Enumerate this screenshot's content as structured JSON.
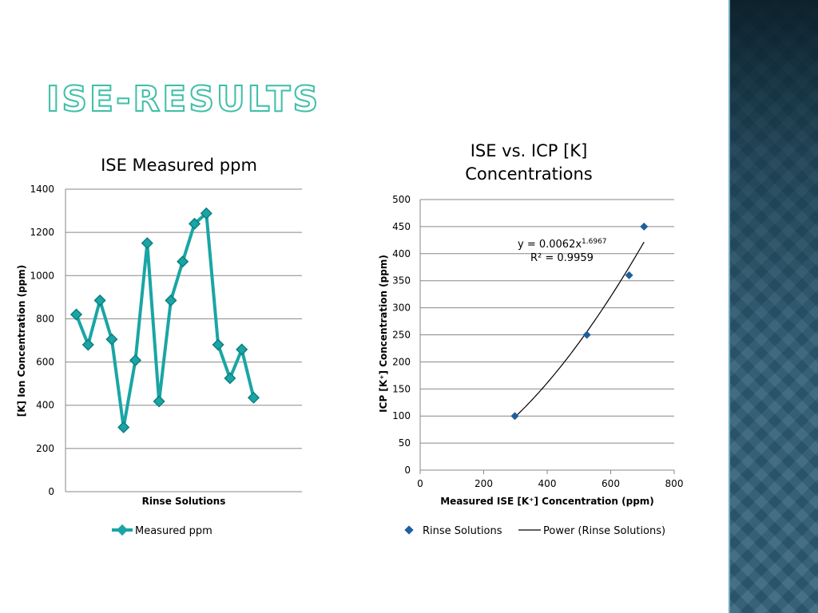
{
  "slide": {
    "title": "ISE-RESULTS"
  },
  "chart_data": [
    {
      "type": "line",
      "title": "ISE Measured ppm",
      "xlabel": "Rinse Solutions",
      "ylabel": "[K] Ion Concentration (ppm)",
      "ylim": [
        0,
        1400
      ],
      "yticks": [
        0,
        200,
        400,
        600,
        800,
        1000,
        1200,
        1400
      ],
      "grid": true,
      "legend_position": "bottom",
      "series": [
        {
          "name": "Measured ppm",
          "color": "#1aa5a5",
          "marker": "diamond",
          "values": [
            820,
            680,
            885,
            705,
            298,
            608,
            1150,
            418,
            885,
            1065,
            1240,
            1288,
            680,
            525,
            658,
            435
          ]
        }
      ]
    },
    {
      "type": "scatter",
      "title_lines": [
        "ISE vs. ICP [K]",
        "Concentrations"
      ],
      "xlabel": "Measured ISE [K⁺] Concentration (ppm)",
      "ylabel": "ICP [K⁺] Concentration (ppm)",
      "xlim": [
        0,
        800
      ],
      "ylim": [
        0,
        500
      ],
      "xticks": [
        0,
        200,
        400,
        600,
        800
      ],
      "yticks": [
        0,
        50,
        100,
        150,
        200,
        250,
        300,
        350,
        400,
        450,
        500
      ],
      "grid": true,
      "legend_position": "bottom",
      "series": [
        {
          "name": "Rinse Solutions",
          "color": "#1f5f9f",
          "marker": "diamond",
          "points": [
            [
              298,
              100
            ],
            [
              525,
              250
            ],
            [
              658,
              360
            ],
            [
              705,
              450
            ]
          ]
        }
      ],
      "trendline": {
        "name": "Power (Rinse Solutions)",
        "type": "power",
        "coef": 0.0062,
        "exponent": 1.6967,
        "x_range": [
          298,
          705
        ],
        "color": "#000000",
        "equation_base": "y = 0.0062x",
        "equation_exp": "1.6967",
        "r2_text": "R² = 0.9959"
      }
    }
  ]
}
